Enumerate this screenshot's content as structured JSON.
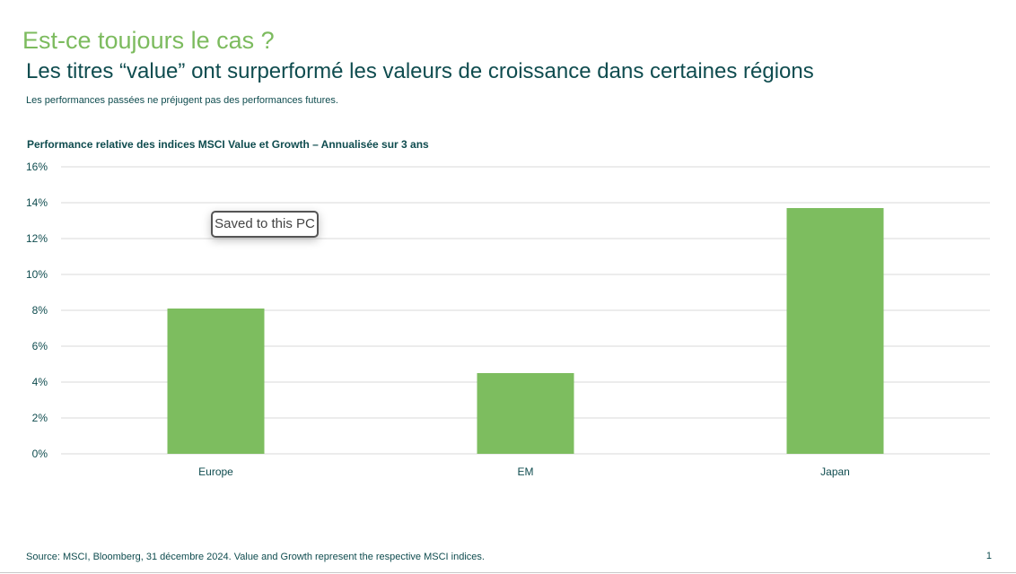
{
  "slide": {
    "title": "Est-ce toujours le cas ?",
    "subtitle": "Les titres “value” ont surperformé les valeurs de croissance dans certaines régions",
    "disclaimer": "Les performances passées ne préjugent pas des performances futures.",
    "source": "Source: MSCI, Bloomberg, 31 décembre 2024. Value and Growth represent the respective MSCI indices.",
    "page_number": "1"
  },
  "toast": {
    "text": "Saved to this PC"
  },
  "colors": {
    "bar": "#7dbd5f",
    "title": "#7cbb5e",
    "text": "#0f4c4f",
    "grid": "#d9d9d9"
  },
  "chart_data": {
    "type": "bar",
    "title": "Performance relative des indices  MSCI Value et Growth – Annualisée sur 3 ans",
    "categories": [
      "Europe",
      "EM",
      "Japan"
    ],
    "values": [
      8.1,
      4.5,
      13.7
    ],
    "ylim": [
      0,
      16
    ],
    "yticks": [
      0,
      2,
      4,
      6,
      8,
      10,
      12,
      14,
      16
    ],
    "ytick_labels": [
      "0%",
      "2%",
      "4%",
      "6%",
      "8%",
      "10%",
      "12%",
      "14%",
      "16%"
    ],
    "grid": true,
    "legend": "none"
  }
}
